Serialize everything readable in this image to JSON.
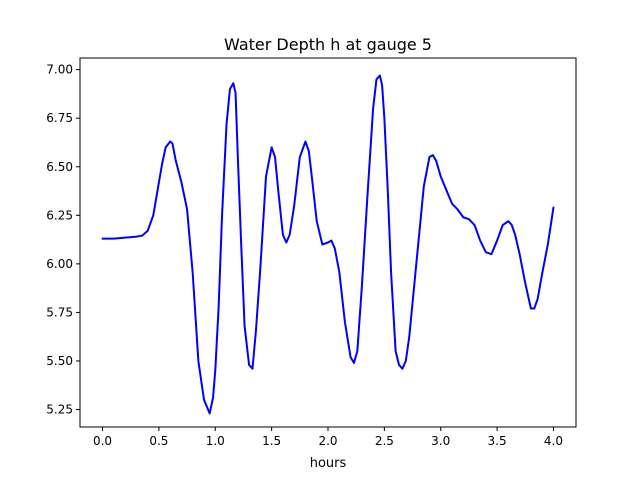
{
  "chart_data": {
    "type": "line",
    "title": "Water Depth h at gauge 5",
    "xlabel": "hours",
    "ylabel": "",
    "xlim": [
      -0.2,
      4.2
    ],
    "ylim": [
      5.16,
      7.06
    ],
    "xticks": [
      0.0,
      0.5,
      1.0,
      1.5,
      2.0,
      2.5,
      3.0,
      3.5,
      4.0
    ],
    "xtick_labels": [
      "0.0",
      "0.5",
      "1.0",
      "1.5",
      "2.0",
      "2.5",
      "3.0",
      "3.5",
      "4.0"
    ],
    "yticks": [
      5.25,
      5.5,
      5.75,
      6.0,
      6.25,
      6.5,
      6.75,
      7.0
    ],
    "ytick_labels": [
      "5.25",
      "5.50",
      "5.75",
      "6.00",
      "6.25",
      "6.50",
      "6.75",
      "7.00"
    ],
    "grid": false,
    "line_color": "#0000ff",
    "series": [
      {
        "x": [
          0.0,
          0.1,
          0.2,
          0.3,
          0.35,
          0.4,
          0.45,
          0.5,
          0.53,
          0.56,
          0.6,
          0.62,
          0.65,
          0.7,
          0.75,
          0.8,
          0.85,
          0.9,
          0.95,
          0.98,
          1.0,
          1.03,
          1.06,
          1.1,
          1.13,
          1.16,
          1.18,
          1.2,
          1.23,
          1.26,
          1.3,
          1.33,
          1.36,
          1.4,
          1.45,
          1.5,
          1.53,
          1.56,
          1.6,
          1.63,
          1.66,
          1.7,
          1.75,
          1.8,
          1.83,
          1.86,
          1.9,
          1.95,
          2.0,
          2.03,
          2.06,
          2.1,
          2.15,
          2.2,
          2.23,
          2.26,
          2.3,
          2.35,
          2.4,
          2.43,
          2.46,
          2.48,
          2.5,
          2.53,
          2.56,
          2.6,
          2.63,
          2.66,
          2.69,
          2.72,
          2.75,
          2.8,
          2.85,
          2.9,
          2.93,
          2.96,
          3.0,
          3.05,
          3.1,
          3.15,
          3.2,
          3.25,
          3.3,
          3.35,
          3.4,
          3.45,
          3.5,
          3.55,
          3.6,
          3.63,
          3.66,
          3.7,
          3.75,
          3.8,
          3.83,
          3.86,
          3.9,
          3.95,
          4.0
        ],
        "y": [
          6.13,
          6.13,
          6.135,
          6.14,
          6.145,
          6.17,
          6.25,
          6.42,
          6.52,
          6.6,
          6.63,
          6.62,
          6.53,
          6.42,
          6.28,
          5.95,
          5.5,
          5.3,
          5.23,
          5.31,
          5.45,
          5.78,
          6.25,
          6.72,
          6.9,
          6.93,
          6.88,
          6.55,
          6.1,
          5.68,
          5.48,
          5.46,
          5.65,
          5.98,
          6.45,
          6.6,
          6.55,
          6.37,
          6.15,
          6.11,
          6.15,
          6.3,
          6.55,
          6.63,
          6.58,
          6.43,
          6.22,
          6.1,
          6.11,
          6.12,
          6.08,
          5.96,
          5.7,
          5.52,
          5.49,
          5.55,
          5.88,
          6.35,
          6.8,
          6.95,
          6.97,
          6.92,
          6.75,
          6.38,
          5.95,
          5.55,
          5.48,
          5.46,
          5.5,
          5.62,
          5.8,
          6.1,
          6.4,
          6.55,
          6.56,
          6.53,
          6.45,
          6.38,
          6.31,
          6.28,
          6.24,
          6.23,
          6.2,
          6.12,
          6.06,
          6.05,
          6.12,
          6.2,
          6.22,
          6.2,
          6.15,
          6.05,
          5.9,
          5.77,
          5.77,
          5.82,
          5.95,
          6.1,
          6.29
        ]
      }
    ]
  }
}
